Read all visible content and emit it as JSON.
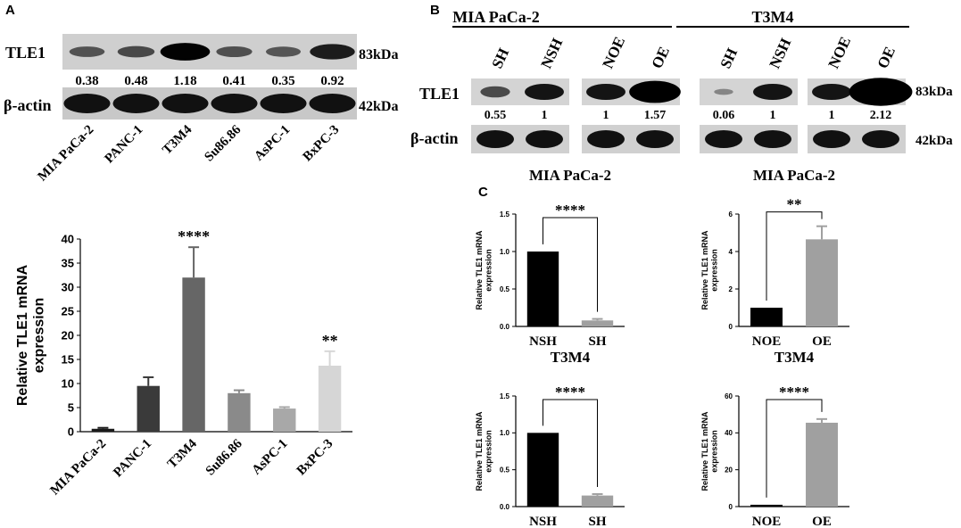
{
  "panel_letters": [
    "A",
    "B",
    "C"
  ],
  "panelA_blot": {
    "protein_label": "TLE1",
    "control_label": "β-actin",
    "protein_size": "83kDa",
    "control_size": "42kDa",
    "lanes": [
      "MIA PaCa-2",
      "PANC-1",
      "T3M4",
      "Su86.86",
      "AsPC-1",
      "BxPC-3"
    ],
    "ratios": [
      "0.38",
      "0.48",
      "1.18",
      "0.41",
      "0.35",
      "0.92"
    ],
    "band_levels": [
      0.38,
      0.48,
      1.18,
      0.41,
      0.35,
      0.92
    ]
  },
  "panelB_blot": {
    "groups": [
      "MIA PaCa-2",
      "T3M4"
    ],
    "protein_label": "TLE1",
    "control_label": "β-actin",
    "protein_size": "83kDa",
    "control_size": "42kDa",
    "lanes": [
      "SH",
      "NSH",
      "NOE",
      "OE",
      "SH",
      "NSH",
      "NOE",
      "OE"
    ],
    "ratios": [
      "0.55",
      "1",
      "1",
      "1.57",
      "0.06",
      "1",
      "1",
      "2.12"
    ],
    "band_levels": [
      0.55,
      1,
      1,
      1.57,
      0.06,
      1,
      1,
      2.12
    ]
  },
  "chart_data": [
    {
      "type": "bar",
      "panel": "A",
      "title": "",
      "xlabel": "",
      "ylabel": "Relative TLE1 mRNA expression",
      "ylabel_lines": [
        "Relative TLE1 mRNA",
        "expression"
      ],
      "categories": [
        "MIA PaCa-2",
        "PANC-1",
        "T3M4",
        "Su86.86",
        "AsPC-1",
        "BxPC-3"
      ],
      "values": [
        0.6,
        9.5,
        32,
        8,
        4.8,
        13.7
      ],
      "errors": [
        0.2,
        1.8,
        6.3,
        0.6,
        0.3,
        3.0
      ],
      "significance": [
        "",
        "",
        "****",
        "",
        "",
        "**"
      ],
      "colors": [
        "#1a1a1a",
        "#3a3a3a",
        "#666666",
        "#8a8a8a",
        "#a8a8a8",
        "#d6d6d6"
      ],
      "ylim": [
        0,
        40
      ],
      "yticks": [
        "0",
        "5",
        "10",
        "15",
        "20",
        "25",
        "30",
        "35",
        "40"
      ],
      "grid": false
    },
    {
      "type": "bar",
      "panel": "C",
      "title": "MIA PaCa-2",
      "xlabel": "",
      "ylabel": "Relative TLE1 mRNA expression",
      "ylabel_lines": [
        "Relative TLE1 mRNA",
        "expression"
      ],
      "categories": [
        "NSH",
        "SH"
      ],
      "values": [
        1.0,
        0.08
      ],
      "errors": [
        0,
        0.02
      ],
      "significance": "****",
      "colors": [
        "#000000",
        "#a0a0a0"
      ],
      "ylim": [
        0,
        1.5
      ],
      "yticks": [
        "0.0",
        "0.5",
        "1.0",
        "1.5"
      ],
      "grid": false
    },
    {
      "type": "bar",
      "panel": "C",
      "title": "MIA PaCa-2",
      "xlabel": "",
      "ylabel": "Relative TLE1 mRNA expression",
      "ylabel_lines": [
        "Relative TLE1 mRNA",
        "expression"
      ],
      "categories": [
        "NOE",
        "OE"
      ],
      "values": [
        1.0,
        4.65
      ],
      "errors": [
        0,
        0.7
      ],
      "significance": "**",
      "colors": [
        "#000000",
        "#a0a0a0"
      ],
      "ylim": [
        0,
        6
      ],
      "yticks": [
        "0",
        "2",
        "4",
        "6"
      ],
      "grid": false
    },
    {
      "type": "bar",
      "panel": "C",
      "title": "T3M4",
      "xlabel": "",
      "ylabel": "Relative TLE1 mRNA expression",
      "ylabel_lines": [
        "Relative TLE1 mRNA",
        "expression"
      ],
      "categories": [
        "NSH",
        "SH"
      ],
      "values": [
        1.0,
        0.15
      ],
      "errors": [
        0,
        0.02
      ],
      "significance": "****",
      "colors": [
        "#000000",
        "#a0a0a0"
      ],
      "ylim": [
        0,
        1.5
      ],
      "yticks": [
        "0.0",
        "0.5",
        "1.0",
        "1.5"
      ],
      "grid": false
    },
    {
      "type": "bar",
      "panel": "C",
      "title": "T3M4",
      "xlabel": "",
      "ylabel": "Relative TLE1 mRNA expression",
      "ylabel_lines": [
        "Relative TLE1 mRNA",
        "expression"
      ],
      "categories": [
        "NOE",
        "OE"
      ],
      "values": [
        1.0,
        45.5
      ],
      "errors": [
        0,
        2.0
      ],
      "significance": "****",
      "colors": [
        "#000000",
        "#a0a0a0"
      ],
      "ylim": [
        0,
        60
      ],
      "yticks": [
        "0",
        "20",
        "40",
        "60"
      ],
      "grid": false
    }
  ]
}
